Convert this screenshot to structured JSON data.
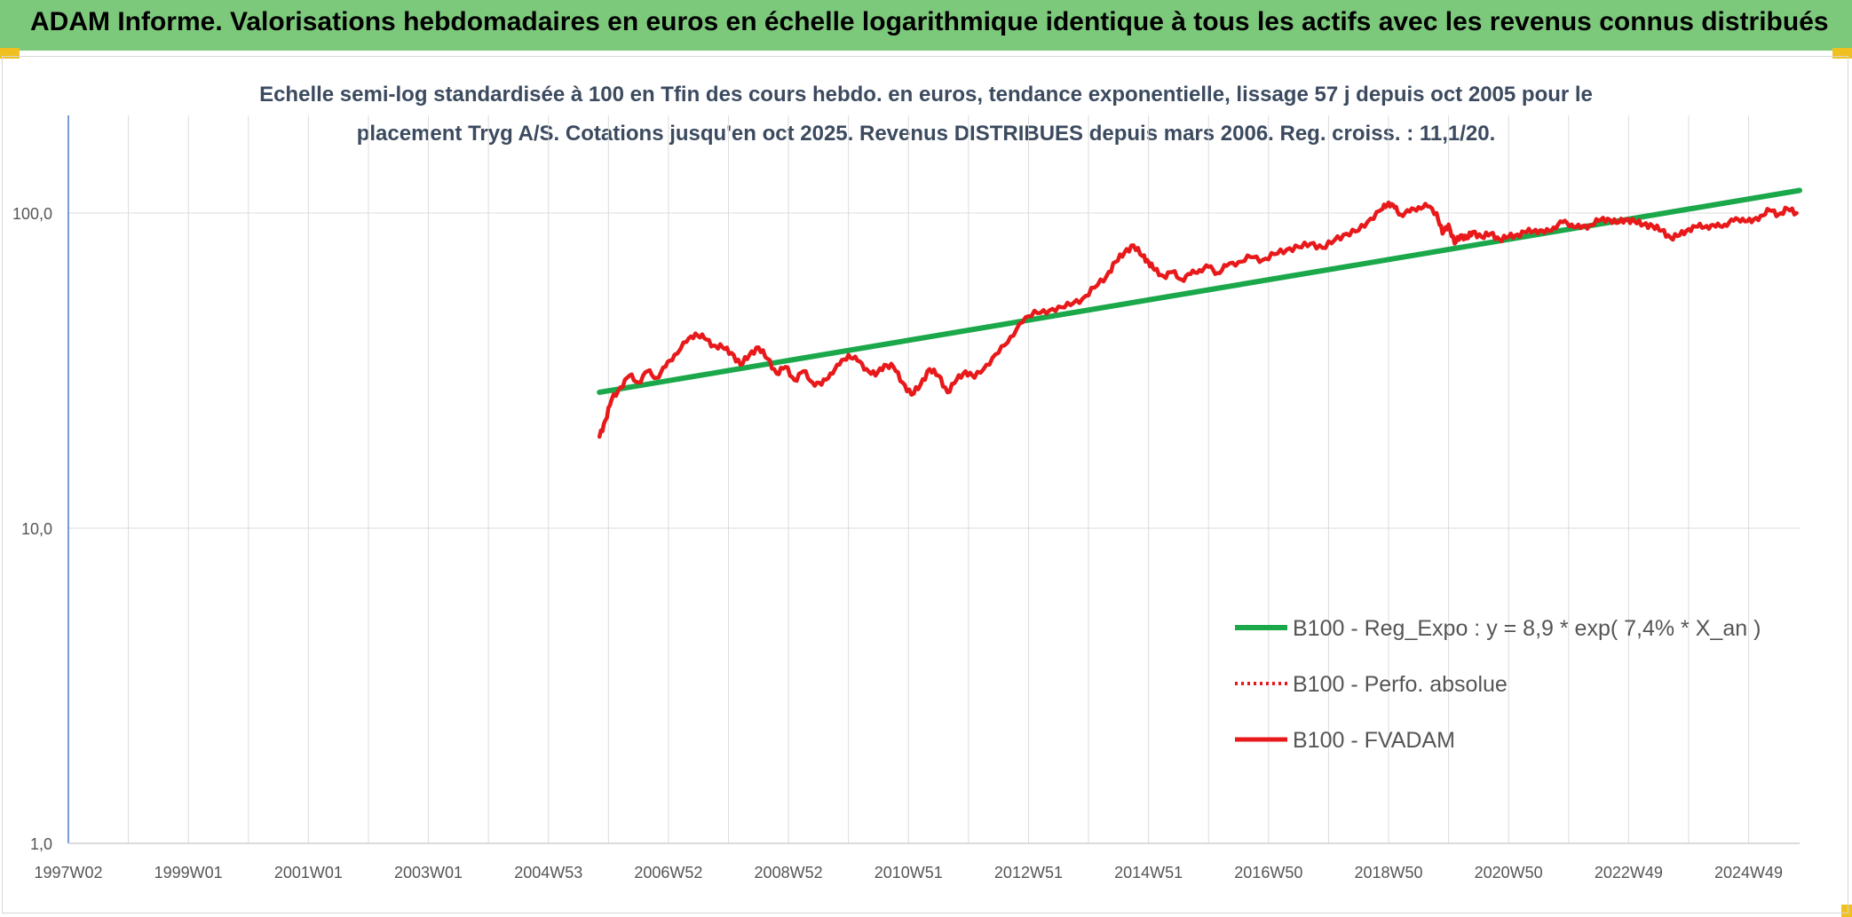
{
  "header": {
    "title": "ADAM Informe. Valorisations hebdomadaires en euros en échelle logarithmique identique à tous les actifs avec les revenus connus distribués"
  },
  "colors": {
    "header_bg": "#7dc97c",
    "regression": "#1aa84a",
    "perf": "#e8191a",
    "fvadam": "#e8191a",
    "grid": "#dcdcdc"
  },
  "chart_data": {
    "type": "line",
    "title_lines": [
      "Echelle semi-log standardisée à 100 en Tfin des cours hebdo. en euros, tendance exponentielle, lissage 57 j depuis oct 2005 pour le",
      "placement Tryg A/S. Cotations jusqu'en oct 2025. Revenus DISTRIBUES depuis mars 2006. Reg. croiss. : 11,1/20."
    ],
    "y_scale": "log",
    "ylim": [
      1,
      200
    ],
    "y_ticks": [
      {
        "value": 1,
        "label": "1,0"
      },
      {
        "value": 10,
        "label": "10,0"
      },
      {
        "value": 100,
        "label": "100,0"
      }
    ],
    "xlim": [
      1997.0,
      2025.85
    ],
    "x_ticks": [
      {
        "value": 1997.0,
        "label": "1997W02"
      },
      {
        "value": 1999.0,
        "label": "1999W01"
      },
      {
        "value": 2001.0,
        "label": "2001W01"
      },
      {
        "value": 2003.0,
        "label": "2003W01"
      },
      {
        "value": 2005.0,
        "label": "2004W53"
      },
      {
        "value": 2007.0,
        "label": "2006W52"
      },
      {
        "value": 2009.0,
        "label": "2008W52"
      },
      {
        "value": 2011.0,
        "label": "2010W51"
      },
      {
        "value": 2013.0,
        "label": "2012W51"
      },
      {
        "value": 2015.0,
        "label": "2014W51"
      },
      {
        "value": 2017.0,
        "label": "2016W50"
      },
      {
        "value": 2019.0,
        "label": "2018W50"
      },
      {
        "value": 2021.0,
        "label": "2020W50"
      },
      {
        "value": 2023.0,
        "label": "2022W49"
      },
      {
        "value": 2025.0,
        "label": "2024W49"
      }
    ],
    "legend": [
      {
        "name": "B100 - Reg_Expo : y = 8,9 * exp( 7,4% *  X_an )",
        "style": "solid-thick",
        "color": "#1aa84a"
      },
      {
        "name": "B100 - Perfo. absolue",
        "style": "dotted",
        "color": "#e8191a"
      },
      {
        "name": "B100 - FVADAM",
        "style": "solid",
        "color": "#e8191a"
      }
    ],
    "legend_position": "bottom-right",
    "series": [
      {
        "name": "B100 - Reg_Expo",
        "x": [
          2005.85,
          2025.85
        ],
        "y": [
          27.0,
          118.0
        ]
      },
      {
        "name": "B100 - FVADAM",
        "x": [
          2005.85,
          2005.95,
          2006.05,
          2006.2,
          2006.35,
          2006.5,
          2006.65,
          2006.8,
          2006.95,
          2007.1,
          2007.3,
          2007.45,
          2007.6,
          2007.75,
          2007.9,
          2008.05,
          2008.2,
          2008.35,
          2008.5,
          2008.65,
          2008.8,
          2008.95,
          2009.1,
          2009.25,
          2009.4,
          2009.55,
          2009.7,
          2009.85,
          2010.0,
          2010.15,
          2010.3,
          2010.45,
          2010.6,
          2010.75,
          2010.9,
          2011.05,
          2011.2,
          2011.35,
          2011.5,
          2011.65,
          2011.8,
          2011.95,
          2012.1,
          2012.3,
          2012.5,
          2012.7,
          2012.9,
          2013.1,
          2013.3,
          2013.5,
          2013.7,
          2013.9,
          2014.1,
          2014.3,
          2014.45,
          2014.6,
          2014.75,
          2014.9,
          2015.0,
          2015.1,
          2015.25,
          2015.4,
          2015.55,
          2015.7,
          2015.85,
          2016.0,
          2016.15,
          2016.3,
          2016.5,
          2016.7,
          2016.9,
          2017.1,
          2017.3,
          2017.5,
          2017.7,
          2017.9,
          2018.1,
          2018.3,
          2018.5,
          2018.7,
          2018.9,
          2019.0,
          2019.1,
          2019.2,
          2019.35,
          2019.5,
          2019.65,
          2019.8,
          2019.9,
          2020.0,
          2020.1,
          2020.2,
          2020.3,
          2020.4,
          2020.55,
          2020.7,
          2020.85,
          2021.0,
          2021.15,
          2021.3,
          2021.45,
          2021.6,
          2021.75,
          2021.9,
          2022.05,
          2022.2,
          2022.35,
          2022.5,
          2022.65,
          2022.8,
          2022.95,
          2023.1,
          2023.25,
          2023.4,
          2023.55,
          2023.7,
          2023.85,
          2024.0,
          2024.15,
          2024.3,
          2024.45,
          2024.6,
          2024.75,
          2024.9,
          2025.05,
          2025.2,
          2025.35,
          2025.5,
          2025.65,
          2025.8
        ],
        "y": [
          19.5,
          22.0,
          25.5,
          28.0,
          30.5,
          29.0,
          31.5,
          30.0,
          32.5,
          35.5,
          39.0,
          41.5,
          40.0,
          38.0,
          37.5,
          36.0,
          33.0,
          35.5,
          37.5,
          34.5,
          31.0,
          32.5,
          29.5,
          31.5,
          29.0,
          28.5,
          31.0,
          33.0,
          35.5,
          34.0,
          32.0,
          30.5,
          33.0,
          32.5,
          29.0,
          26.5,
          28.5,
          32.0,
          30.5,
          27.0,
          29.5,
          31.5,
          30.0,
          33.0,
          36.0,
          40.5,
          45.0,
          49.0,
          48.0,
          50.5,
          51.0,
          53.5,
          58.0,
          63.0,
          70.0,
          75.0,
          79.0,
          73.0,
          70.0,
          66.0,
          63.0,
          65.0,
          61.5,
          64.0,
          66.0,
          67.5,
          64.5,
          68.0,
          70.0,
          72.5,
          71.0,
          74.0,
          76.5,
          78.0,
          80.0,
          77.5,
          82.0,
          86.0,
          88.0,
          96.0,
          103.0,
          108.0,
          104.0,
          99.0,
          101.0,
          104.5,
          105.0,
          100.0,
          86.0,
          92.0,
          80.0,
          85.0,
          83.0,
          87.0,
          84.0,
          86.0,
          82.5,
          84.0,
          85.5,
          87.0,
          88.5,
          86.5,
          90.0,
          93.5,
          92.0,
          89.5,
          91.5,
          94.5,
          96.0,
          93.0,
          95.5,
          94.0,
          92.0,
          91.0,
          88.0,
          83.5,
          85.0,
          89.0,
          90.5,
          91.0,
          90.5,
          92.0,
          94.5,
          96.0,
          93.5,
          98.0,
          102.0,
          99.0,
          103.0,
          100.0
        ]
      }
    ]
  }
}
